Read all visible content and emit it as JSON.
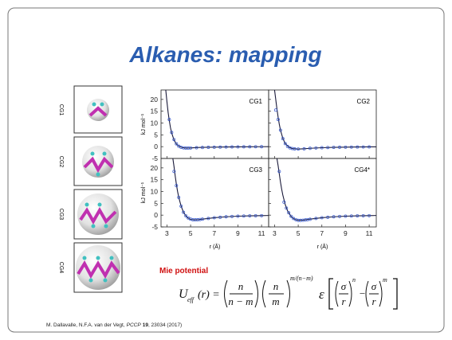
{
  "title": "Alkanes: mapping",
  "mapping_labels": [
    "CG1",
    "CG2",
    "CG3",
    "CG4"
  ],
  "mie_label": "Mie potential",
  "formula": [
    "U",
    "eff",
    "(r) =",
    "n",
    "n − m",
    "n",
    "m",
    "m/(n−m)",
    "ε",
    "σ",
    "r",
    "n",
    "−",
    "σ",
    "r",
    "m"
  ],
  "citation": [
    "M. Dallavalle, N.F.A. van der Vegt,",
    "PCCP",
    "19",
    ", 23034 (2017)"
  ],
  "chart_data": [
    {
      "type": "line",
      "label": "CG1",
      "ylabel": "kJ mol⁻¹",
      "xlim": [
        2.5,
        11.6
      ],
      "ylim": [
        -5,
        24
      ],
      "xticks": [
        3,
        5,
        7,
        9,
        11
      ],
      "yticks": [
        -5,
        0,
        5,
        10,
        15,
        20
      ],
      "line_color": "#1a1a3a",
      "point_color": "#3355cc",
      "line": {
        "x": [
          2.9,
          3.0,
          3.1,
          3.2,
          3.3,
          3.4,
          3.6,
          3.8,
          4.0,
          4.3,
          4.6,
          5.0,
          5.5,
          6,
          7,
          8,
          9,
          10,
          11,
          11.6
        ],
        "values": [
          24,
          19,
          14.5,
          11,
          8,
          5.8,
          2.8,
          1.1,
          0.2,
          -0.4,
          -0.6,
          -0.55,
          -0.4,
          -0.3,
          -0.2,
          -0.12,
          -0.08,
          -0.05,
          -0.03,
          -0.02
        ]
      },
      "points": {
        "x": [
          3.2,
          3.4,
          3.6,
          3.8,
          4.0,
          4.2,
          4.4,
          4.6,
          4.8,
          5.0,
          5.5,
          6,
          6.5,
          7,
          7.5,
          8,
          8.5,
          9,
          9.5,
          10,
          10.5,
          11
        ],
        "values": [
          11.5,
          6,
          3,
          1.2,
          0.2,
          -0.3,
          -0.5,
          -0.6,
          -0.6,
          -0.55,
          -0.45,
          -0.35,
          -0.28,
          -0.22,
          -0.18,
          -0.14,
          -0.11,
          -0.09,
          -0.07,
          -0.05,
          -0.04,
          -0.03
        ]
      }
    },
    {
      "type": "line",
      "label": "CG2",
      "xlim": [
        2.5,
        11.6
      ],
      "ylim": [
        -5,
        24
      ],
      "xticks": [
        3,
        5,
        7,
        9,
        11
      ],
      "yticks": [
        -5,
        0,
        5,
        10,
        15,
        20
      ],
      "line_color": "#1a1a3a",
      "point_color": "#3355cc",
      "line": {
        "x": [
          3.0,
          3.1,
          3.2,
          3.3,
          3.4,
          3.5,
          3.7,
          3.9,
          4.2,
          4.5,
          5.0,
          5.5,
          6,
          7,
          8,
          9,
          10,
          11,
          11.6
        ],
        "values": [
          24,
          20,
          16,
          12.5,
          9.5,
          7,
          3.5,
          1.3,
          -0.2,
          -0.8,
          -1.0,
          -0.9,
          -0.7,
          -0.45,
          -0.3,
          -0.2,
          -0.14,
          -0.1,
          -0.08
        ]
      },
      "points": {
        "x": [
          3.1,
          3.3,
          3.5,
          3.7,
          3.9,
          4.1,
          4.3,
          4.5,
          4.7,
          5.0,
          5.5,
          6,
          6.5,
          7,
          7.5,
          8,
          8.5,
          9,
          9.5,
          10,
          10.5,
          11
        ],
        "values": [
          15.5,
          11.5,
          7,
          3.4,
          1.3,
          0.1,
          -0.5,
          -0.8,
          -0.95,
          -1.0,
          -0.9,
          -0.7,
          -0.55,
          -0.45,
          -0.37,
          -0.3,
          -0.24,
          -0.2,
          -0.16,
          -0.14,
          -0.12,
          -0.1
        ]
      }
    },
    {
      "type": "line",
      "label": "CG3",
      "ylabel": "kJ mol⁻¹",
      "xlabel": "r (Å)",
      "xlim": [
        2.5,
        11.6
      ],
      "ylim": [
        -5,
        24
      ],
      "xticks": [
        3,
        5,
        7,
        9,
        11
      ],
      "yticks": [
        -5,
        0,
        5,
        10,
        15,
        20
      ],
      "line_color": "#1a1a3a",
      "point_color": "#3355cc",
      "line": {
        "x": [
          3.5,
          3.6,
          3.7,
          3.8,
          3.9,
          4.0,
          4.2,
          4.4,
          4.7,
          5.0,
          5.3,
          5.7,
          6,
          7,
          8,
          9,
          10,
          11,
          11.6
        ],
        "values": [
          24,
          20.5,
          16.5,
          13,
          10,
          7.5,
          3.8,
          1.2,
          -1.0,
          -1.8,
          -2.0,
          -1.9,
          -1.7,
          -1.1,
          -0.7,
          -0.45,
          -0.3,
          -0.2,
          -0.15
        ]
      },
      "points": {
        "x": [
          3.6,
          3.8,
          4.0,
          4.2,
          4.4,
          4.6,
          4.8,
          5.0,
          5.2,
          5.4,
          5.6,
          5.8,
          6,
          6.5,
          7,
          7.5,
          8,
          8.5,
          9,
          9.5,
          10,
          10.5,
          11
        ],
        "values": [
          18.5,
          12.5,
          7.5,
          3.8,
          1.2,
          -0.3,
          -1.2,
          -1.7,
          -2.0,
          -2.0,
          -1.95,
          -1.85,
          -1.7,
          -1.4,
          -1.1,
          -0.9,
          -0.7,
          -0.55,
          -0.45,
          -0.37,
          -0.3,
          -0.25,
          -0.2
        ]
      }
    },
    {
      "type": "line",
      "label": "CG4*",
      "xlabel": "r (Å)",
      "xlim": [
        2.5,
        11.6
      ],
      "ylim": [
        -5,
        24
      ],
      "xticks": [
        3,
        5,
        7,
        9,
        11
      ],
      "yticks": [
        -5,
        0,
        5,
        10,
        15,
        20
      ],
      "line_color": "#1a1a3a",
      "point_color": "#3355cc",
      "line": {
        "x": [
          3.2,
          3.3,
          3.4,
          3.5,
          3.6,
          3.7,
          3.9,
          4.1,
          4.4,
          4.7,
          5.0,
          5.4,
          6,
          7,
          8,
          9,
          10,
          11,
          11.6
        ],
        "values": [
          24,
          21,
          17.5,
          14,
          11,
          8.5,
          4.5,
          1.8,
          -0.6,
          -1.8,
          -2.2,
          -2.1,
          -1.7,
          -1.1,
          -0.7,
          -0.45,
          -0.3,
          -0.2,
          -0.15
        ]
      },
      "points": {
        "x": [
          3.4,
          3.8,
          4.0,
          4.2,
          4.4,
          4.6,
          4.8,
          5.0,
          5.2,
          5.4,
          5.6,
          5.8,
          6,
          6.5,
          7,
          7.5,
          8,
          8.5,
          9,
          9.5,
          10,
          10.5,
          11
        ],
        "values": [
          18.5,
          5.5,
          3,
          1,
          -0.5,
          -1.4,
          -1.9,
          -2.2,
          -2.2,
          -2.15,
          -2.05,
          -1.9,
          -1.75,
          -1.4,
          -1.1,
          -0.9,
          -0.7,
          -0.55,
          -0.45,
          -0.37,
          -0.3,
          -0.25,
          -0.2
        ]
      }
    }
  ]
}
